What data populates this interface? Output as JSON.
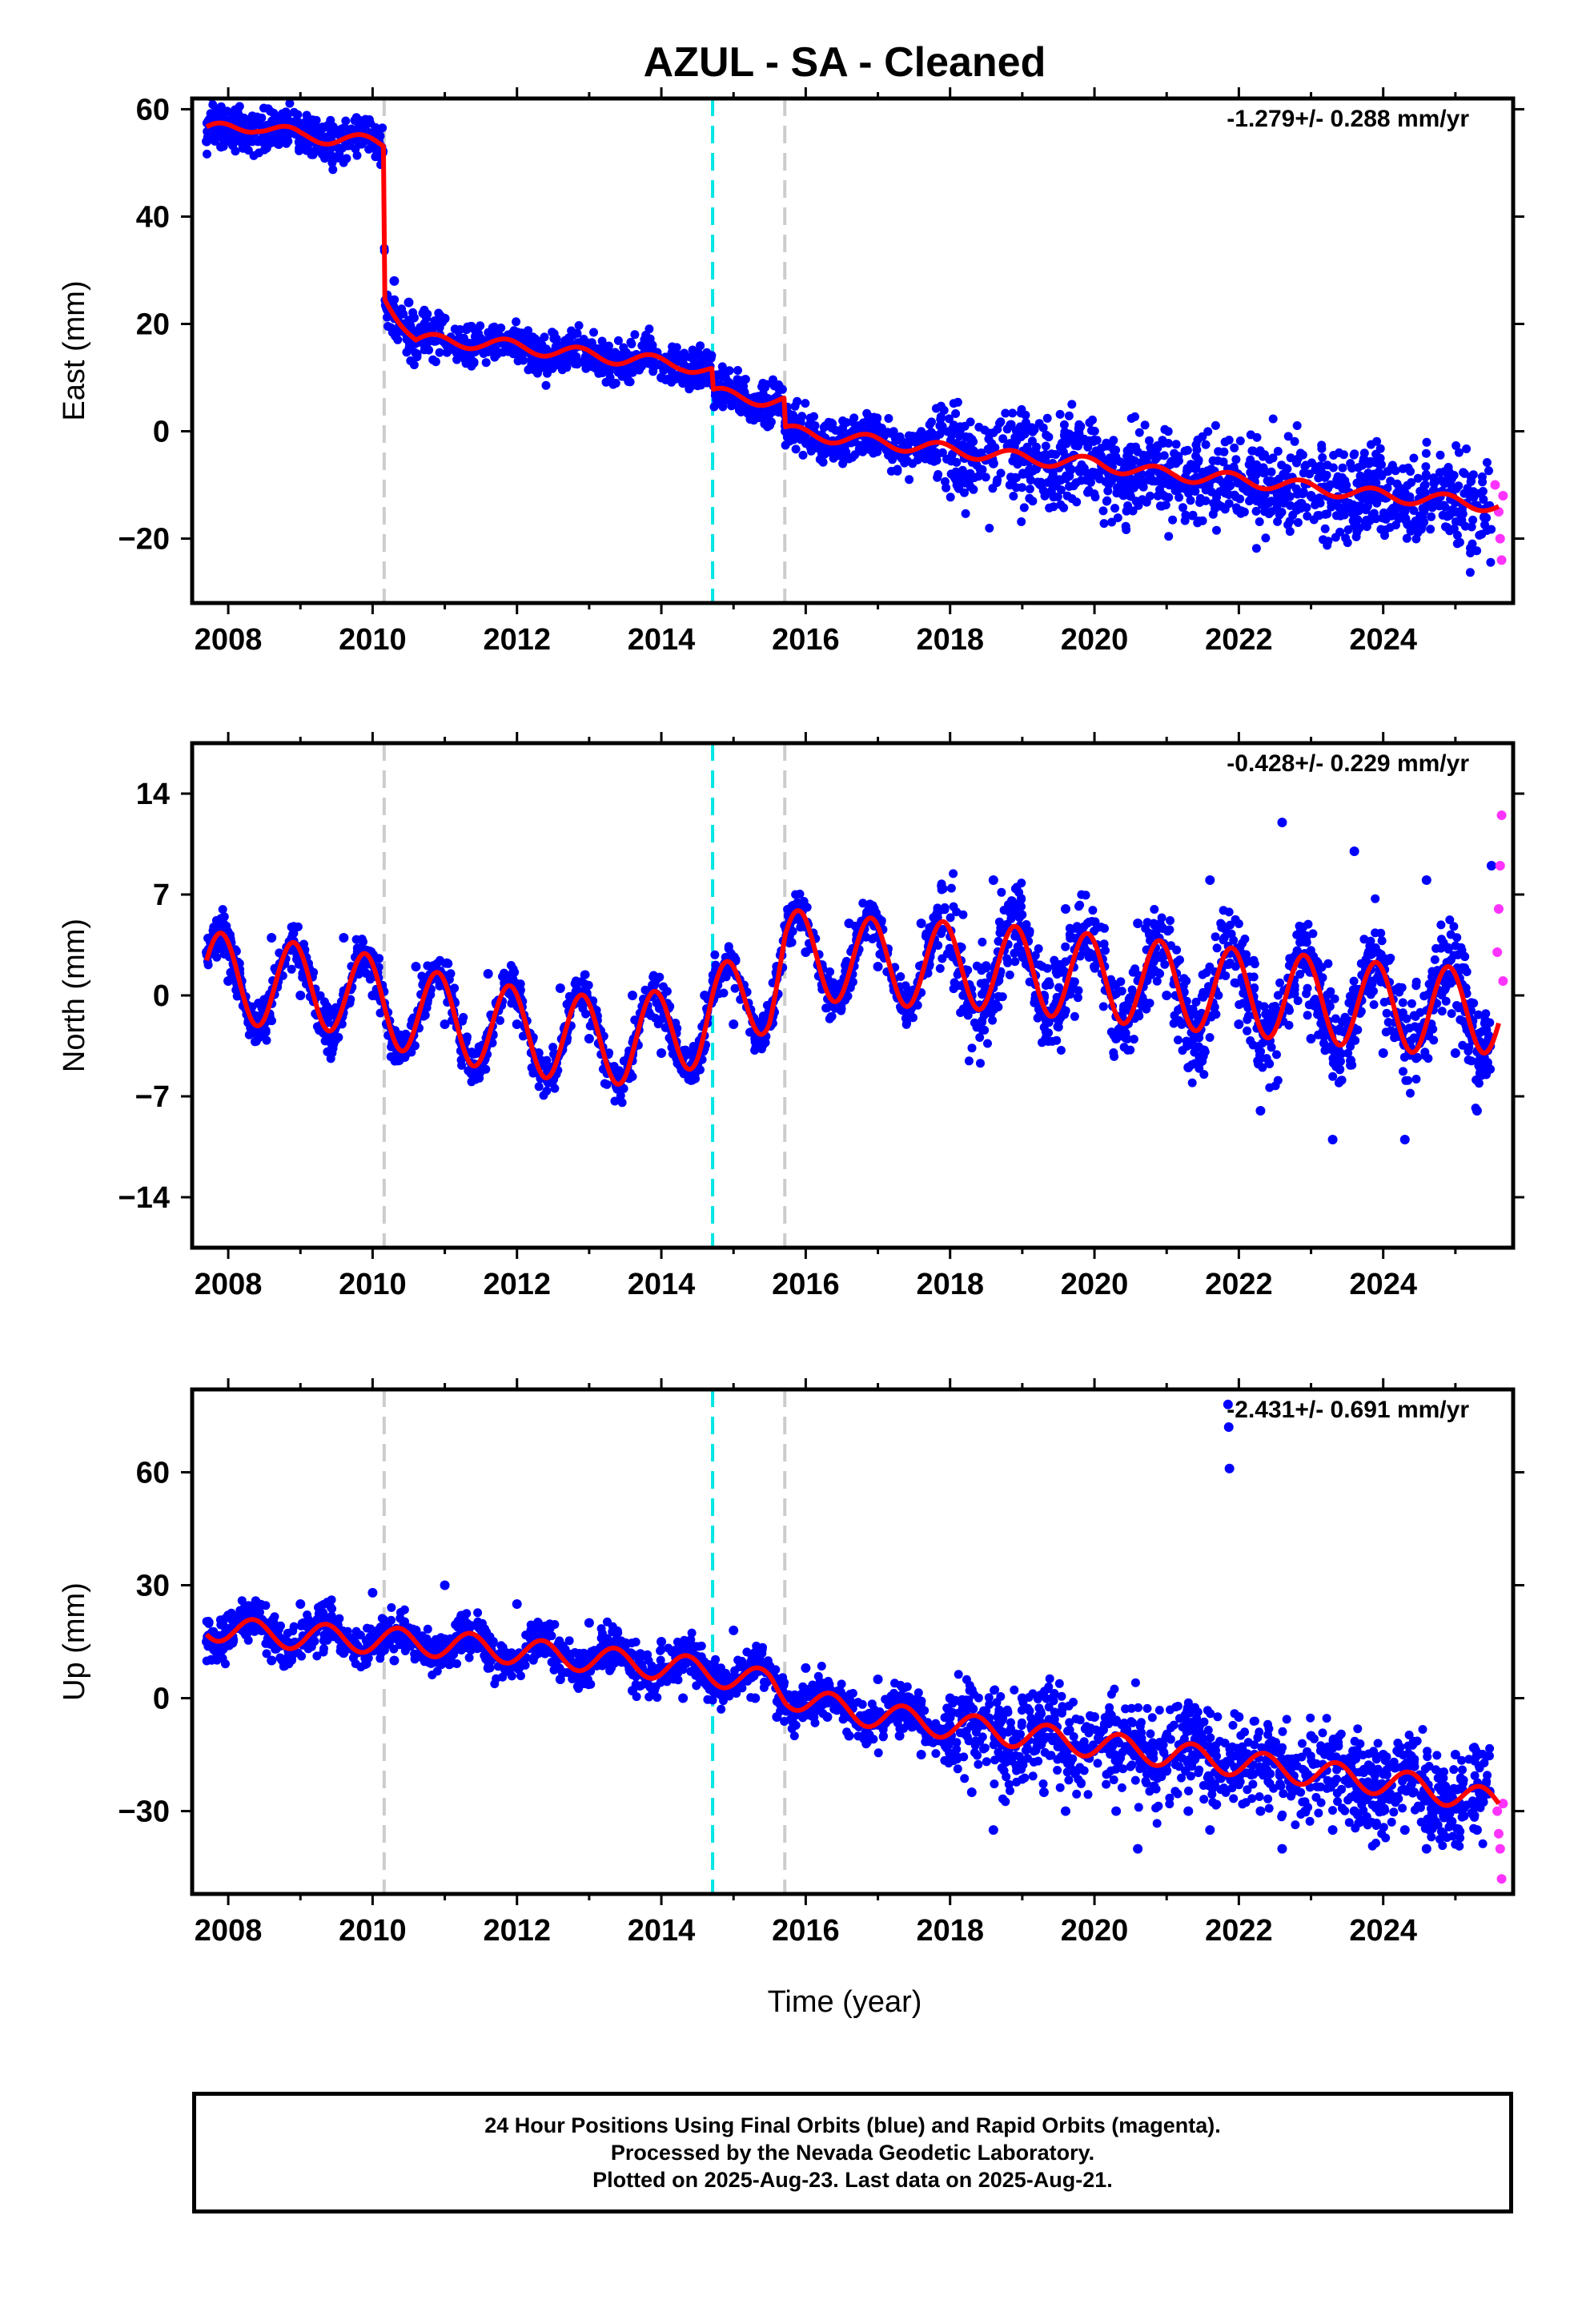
{
  "title": "AZUL  - SA - Cleaned",
  "xlabel": "Time (year)",
  "caption": [
    "24 Hour Positions Using Final Orbits (blue) and Rapid Orbits (magenta).",
    "Processed by the Nevada Geodetic Laboratory.",
    "Plotted on 2025-Aug-23. Last data on 2025-Aug-21."
  ],
  "colors": {
    "final_orbits": "#0000ff",
    "rapid_orbits": "#ff33ff",
    "model": "#ff0000",
    "antenna_change": "#cccccc",
    "earthquake": "#00e5e5"
  },
  "chart_data": [
    {
      "type": "scatter",
      "panel": "East",
      "ylabel": "East (mm)",
      "annotation": "-1.279+/- 0.288 mm/yr",
      "xlim": [
        2007.5,
        2025.8
      ],
      "ylim": [
        -32,
        62
      ],
      "yticks": [
        -20,
        0,
        20,
        40,
        60
      ],
      "xticks": [
        2008,
        2010,
        2012,
        2014,
        2016,
        2018,
        2020,
        2022,
        2024
      ],
      "vlines": [
        {
          "x": 2010.16,
          "kind": "antenna_change"
        },
        {
          "x": 2014.71,
          "kind": "earthquake"
        },
        {
          "x": 2015.71,
          "kind": "antenna_change"
        }
      ],
      "model_knots": [
        [
          2007.7,
          56
        ],
        [
          2008.4,
          57
        ],
        [
          2009.0,
          55
        ],
        [
          2009.6,
          54.5
        ],
        [
          2010.15,
          53.5
        ],
        [
          2010.17,
          25
        ],
        [
          2010.6,
          17
        ],
        [
          2011.5,
          16.5
        ],
        [
          2012.5,
          15
        ],
        [
          2013.5,
          13.5
        ],
        [
          2014.3,
          12.5
        ],
        [
          2014.7,
          11
        ],
        [
          2014.72,
          7
        ],
        [
          2015.7,
          5.5
        ],
        [
          2015.72,
          0
        ],
        [
          2017.0,
          -2
        ],
        [
          2018.0,
          -3.5
        ],
        [
          2019.0,
          -5
        ],
        [
          2020.0,
          -6
        ],
        [
          2021.0,
          -8
        ],
        [
          2022.0,
          -9
        ],
        [
          2023.0,
          -10.5
        ],
        [
          2024.0,
          -12
        ],
        [
          2025.0,
          -13
        ],
        [
          2025.6,
          -14
        ]
      ],
      "model_seasonal_amplitude": 1.2,
      "model_seasonal_phase": 0.6,
      "points_final": [
        [
          2007.7,
          54
        ],
        [
          2007.8,
          55.5
        ],
        [
          2007.9,
          53
        ],
        [
          2008.0,
          54.5
        ],
        [
          2008.1,
          56
        ],
        [
          2008.2,
          55
        ],
        [
          2008.3,
          57
        ],
        [
          2008.4,
          58.5
        ],
        [
          2008.5,
          56
        ],
        [
          2008.6,
          55
        ],
        [
          2008.7,
          53.5
        ],
        [
          2008.8,
          55.5
        ],
        [
          2008.9,
          56
        ],
        [
          2009.0,
          54
        ],
        [
          2009.2,
          55
        ],
        [
          2009.4,
          57
        ],
        [
          2009.6,
          55
        ],
        [
          2009.8,
          54
        ],
        [
          2010.0,
          53
        ],
        [
          2010.1,
          55
        ],
        [
          2010.3,
          28
        ],
        [
          2010.5,
          24
        ],
        [
          2010.7,
          22
        ],
        [
          2011.0,
          21
        ],
        [
          2011.3,
          19
        ],
        [
          2011.6,
          17
        ],
        [
          2012.0,
          16
        ],
        [
          2012.3,
          15
        ],
        [
          2012.6,
          14
        ],
        [
          2013.0,
          13
        ],
        [
          2013.3,
          12
        ],
        [
          2013.6,
          11
        ],
        [
          2014.0,
          10
        ],
        [
          2014.3,
          9
        ],
        [
          2014.6,
          9.5
        ],
        [
          2014.8,
          7
        ],
        [
          2015.0,
          6.5
        ],
        [
          2015.3,
          6
        ],
        [
          2015.6,
          5
        ],
        [
          2015.9,
          0
        ],
        [
          2016.2,
          -1
        ],
        [
          2016.6,
          -2
        ],
        [
          2017.0,
          -2.5
        ],
        [
          2017.4,
          -3
        ],
        [
          2017.8,
          -4
        ],
        [
          2018.2,
          -5
        ],
        [
          2018.6,
          -6
        ],
        [
          2019.0,
          -5.5
        ],
        [
          2019.4,
          -7
        ],
        [
          2019.8,
          -7.5
        ],
        [
          2020.2,
          -8
        ],
        [
          2020.6,
          -9
        ],
        [
          2021.0,
          -9
        ],
        [
          2021.4,
          -10
        ],
        [
          2021.8,
          -10
        ],
        [
          2022.2,
          -11
        ],
        [
          2022.6,
          -11.5
        ],
        [
          2023.0,
          -12
        ],
        [
          2023.4,
          -12.5
        ],
        [
          2023.8,
          -13
        ],
        [
          2024.2,
          -13.5
        ],
        [
          2024.6,
          -14
        ],
        [
          2025.0,
          -15
        ],
        [
          2025.4,
          -16
        ]
      ],
      "points_rapid": [
        [
          2025.55,
          -10
        ],
        [
          2025.6,
          -15
        ],
        [
          2025.62,
          -20
        ],
        [
          2025.64,
          -24
        ],
        [
          2025.66,
          -12
        ]
      ]
    },
    {
      "type": "scatter",
      "panel": "North",
      "ylabel": "North (mm)",
      "annotation": "-0.428+/- 0.229 mm/yr",
      "xlim": [
        2007.5,
        2025.8
      ],
      "ylim": [
        -17.5,
        17.5
      ],
      "yticks": [
        -14,
        -7,
        0,
        7,
        14
      ],
      "xticks": [
        2008,
        2010,
        2012,
        2014,
        2016,
        2018,
        2020,
        2022,
        2024
      ],
      "vlines": [
        {
          "x": 2010.16,
          "kind": "antenna_change"
        },
        {
          "x": 2014.71,
          "kind": "earthquake"
        },
        {
          "x": 2015.71,
          "kind": "antenna_change"
        }
      ],
      "model_knots": [
        [
          2007.7,
          1.5
        ],
        [
          2008.5,
          0.8
        ],
        [
          2009.5,
          0.5
        ],
        [
          2010.5,
          -1
        ],
        [
          2011.5,
          -2
        ],
        [
          2012.5,
          -2.8
        ],
        [
          2013.5,
          -3.2
        ],
        [
          2014.5,
          -2
        ],
        [
          2014.72,
          -1
        ],
        [
          2015.5,
          0.5
        ],
        [
          2015.72,
          3
        ],
        [
          2016.5,
          2.5
        ],
        [
          2017.5,
          2.2
        ],
        [
          2018.5,
          2
        ],
        [
          2019.5,
          1.5
        ],
        [
          2020.5,
          1
        ],
        [
          2021.5,
          0.5
        ],
        [
          2022.5,
          0
        ],
        [
          2023.5,
          -0.5
        ],
        [
          2024.5,
          -1
        ],
        [
          2025.6,
          -1
        ]
      ],
      "model_seasonal_amplitude": 3.0,
      "model_seasonal_phase": 0.65,
      "points_final": [
        [
          2007.7,
          3
        ],
        [
          2008.0,
          1
        ],
        [
          2008.3,
          -1
        ],
        [
          2008.6,
          4
        ],
        [
          2009.0,
          0
        ],
        [
          2009.3,
          -2
        ],
        [
          2009.6,
          4
        ],
        [
          2010.0,
          0
        ],
        [
          2010.3,
          -3
        ],
        [
          2010.6,
          2
        ],
        [
          2011.0,
          -2
        ],
        [
          2011.3,
          -3
        ],
        [
          2011.6,
          1.5
        ],
        [
          2012.0,
          -2
        ],
        [
          2012.3,
          -4
        ],
        [
          2012.6,
          0.5
        ],
        [
          2013.0,
          -3
        ],
        [
          2013.3,
          -5
        ],
        [
          2013.6,
          0
        ],
        [
          2014.0,
          -4
        ],
        [
          2014.3,
          -5
        ],
        [
          2014.6,
          0
        ],
        [
          2015.0,
          -2
        ],
        [
          2015.3,
          -3
        ],
        [
          2015.6,
          2
        ],
        [
          2016.0,
          3
        ],
        [
          2016.3,
          1
        ],
        [
          2016.6,
          5
        ],
        [
          2017.0,
          2
        ],
        [
          2017.3,
          0
        ],
        [
          2017.6,
          5
        ],
        [
          2018.0,
          3
        ],
        [
          2018.3,
          0
        ],
        [
          2018.6,
          8
        ],
        [
          2019.0,
          4
        ],
        [
          2019.3,
          0
        ],
        [
          2019.6,
          6
        ],
        [
          2020.0,
          2
        ],
        [
          2020.3,
          -3
        ],
        [
          2020.6,
          5
        ],
        [
          2021.0,
          0
        ],
        [
          2021.3,
          -5
        ],
        [
          2021.6,
          8
        ],
        [
          2022.0,
          -2
        ],
        [
          2022.3,
          -8
        ],
        [
          2022.6,
          12
        ],
        [
          2023.0,
          -3
        ],
        [
          2023.3,
          -10
        ],
        [
          2023.6,
          10
        ],
        [
          2024.0,
          -4
        ],
        [
          2024.3,
          -10
        ],
        [
          2024.6,
          8
        ],
        [
          2025.0,
          -4
        ],
        [
          2025.3,
          -8
        ],
        [
          2025.5,
          9
        ]
      ],
      "points_rapid": [
        [
          2025.58,
          3
        ],
        [
          2025.6,
          6
        ],
        [
          2025.62,
          9
        ],
        [
          2025.64,
          12.5
        ],
        [
          2025.66,
          1
        ]
      ]
    },
    {
      "type": "scatter",
      "panel": "Up",
      "ylabel": "Up (mm)",
      "annotation": "-2.431+/- 0.691 mm/yr",
      "xlim": [
        2007.5,
        2025.8
      ],
      "ylim": [
        -52,
        82
      ],
      "yticks": [
        -30,
        0,
        30,
        60
      ],
      "xticks": [
        2008,
        2010,
        2012,
        2014,
        2016,
        2018,
        2020,
        2022,
        2024
      ],
      "vlines": [
        {
          "x": 2010.16,
          "kind": "antenna_change"
        },
        {
          "x": 2014.71,
          "kind": "earthquake"
        },
        {
          "x": 2015.71,
          "kind": "antenna_change"
        }
      ],
      "model_knots": [
        [
          2007.7,
          19
        ],
        [
          2008.5,
          17
        ],
        [
          2009.5,
          16
        ],
        [
          2010.5,
          15
        ],
        [
          2011.5,
          13.5
        ],
        [
          2012.5,
          11.5
        ],
        [
          2013.5,
          9.5
        ],
        [
          2014.5,
          7.5
        ],
        [
          2015.5,
          4
        ],
        [
          2015.72,
          1
        ],
        [
          2016.5,
          -3
        ],
        [
          2017.5,
          -6
        ],
        [
          2018.5,
          -8.5
        ],
        [
          2019.5,
          -11
        ],
        [
          2020.5,
          -13.5
        ],
        [
          2021.5,
          -16
        ],
        [
          2022.5,
          -18.5
        ],
        [
          2023.5,
          -21
        ],
        [
          2024.5,
          -23.5
        ],
        [
          2025.6,
          -28
        ]
      ],
      "model_seasonal_amplitude": 3.5,
      "model_seasonal_phase": 0.1,
      "points_final": [
        [
          2007.7,
          15
        ],
        [
          2008.0,
          22
        ],
        [
          2008.3,
          18
        ],
        [
          2008.6,
          10
        ],
        [
          2009.0,
          25
        ],
        [
          2009.3,
          20
        ],
        [
          2009.6,
          12
        ],
        [
          2010.0,
          28
        ],
        [
          2010.3,
          10
        ],
        [
          2010.6,
          18
        ],
        [
          2011.0,
          30
        ],
        [
          2011.3,
          15
        ],
        [
          2011.6,
          8
        ],
        [
          2012.0,
          25
        ],
        [
          2012.3,
          12
        ],
        [
          2012.6,
          5
        ],
        [
          2013.0,
          20
        ],
        [
          2013.3,
          8
        ],
        [
          2013.6,
          2
        ],
        [
          2014.0,
          15
        ],
        [
          2014.3,
          0
        ],
        [
          2014.6,
          5
        ],
        [
          2015.0,
          18
        ],
        [
          2015.3,
          0
        ],
        [
          2015.6,
          -5
        ],
        [
          2016.0,
          8
        ],
        [
          2016.3,
          -5
        ],
        [
          2016.6,
          -10
        ],
        [
          2017.0,
          5
        ],
        [
          2017.3,
          -10
        ],
        [
          2017.6,
          -15
        ],
        [
          2018.0,
          0
        ],
        [
          2018.3,
          -25
        ],
        [
          2018.6,
          -35
        ],
        [
          2019.0,
          0
        ],
        [
          2019.3,
          -25
        ],
        [
          2019.6,
          -30
        ],
        [
          2020.0,
          -5
        ],
        [
          2020.3,
          -30
        ],
        [
          2020.6,
          -40
        ],
        [
          2021.0,
          -10
        ],
        [
          2021.3,
          -30
        ],
        [
          2021.6,
          -35
        ],
        [
          2022.0,
          -5
        ],
        [
          2022.3,
          -30
        ],
        [
          2022.6,
          -40
        ],
        [
          2023.0,
          -10
        ],
        [
          2023.3,
          -35
        ],
        [
          2023.6,
          -30
        ],
        [
          2024.0,
          -15
        ],
        [
          2024.3,
          -35
        ],
        [
          2024.6,
          -40
        ],
        [
          2025.0,
          -15
        ],
        [
          2025.3,
          -35
        ],
        [
          2021.85,
          78
        ],
        [
          2021.86,
          72
        ],
        [
          2021.87,
          61
        ]
      ],
      "points_rapid": [
        [
          2025.58,
          -30
        ],
        [
          2025.6,
          -36
        ],
        [
          2025.62,
          -40
        ],
        [
          2025.64,
          -48
        ],
        [
          2025.66,
          -28
        ]
      ]
    }
  ]
}
